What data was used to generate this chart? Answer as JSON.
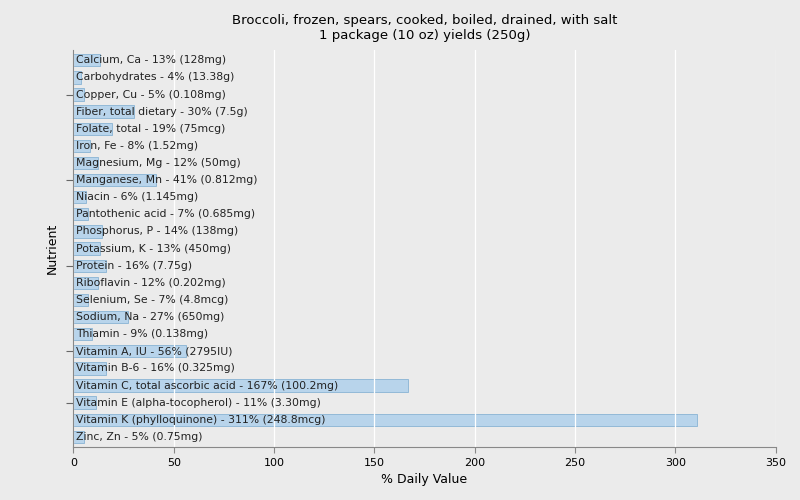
{
  "title": "Broccoli, frozen, spears, cooked, boiled, drained, with salt\n1 package (10 oz) yields (250g)",
  "xlabel": "% Daily Value",
  "ylabel": "Nutrient",
  "xlim": [
    0,
    350
  ],
  "xticks": [
    0,
    50,
    100,
    150,
    200,
    250,
    300,
    350
  ],
  "bar_color": "#b8d4eb",
  "bar_edge_color": "#7aaacf",
  "background_color": "#ebebeb",
  "plot_bg_color": "#ebebeb",
  "nutrients": [
    "Calcium, Ca - 13% (128mg)",
    "Carbohydrates - 4% (13.38g)",
    "Copper, Cu - 5% (0.108mg)",
    "Fiber, total dietary - 30% (7.5g)",
    "Folate, total - 19% (75mcg)",
    "Iron, Fe - 8% (1.52mg)",
    "Magnesium, Mg - 12% (50mg)",
    "Manganese, Mn - 41% (0.812mg)",
    "Niacin - 6% (1.145mg)",
    "Pantothenic acid - 7% (0.685mg)",
    "Phosphorus, P - 14% (138mg)",
    "Potassium, K - 13% (450mg)",
    "Protein - 16% (7.75g)",
    "Riboflavin - 12% (0.202mg)",
    "Selenium, Se - 7% (4.8mcg)",
    "Sodium, Na - 27% (650mg)",
    "Thiamin - 9% (0.138mg)",
    "Vitamin A, IU - 56% (2795IU)",
    "Vitamin B-6 - 16% (0.325mg)",
    "Vitamin C, total ascorbic acid - 167% (100.2mg)",
    "Vitamin E (alpha-tocopherol) - 11% (3.30mg)",
    "Vitamin K (phylloquinone) - 311% (248.8mcg)",
    "Zinc, Zn - 5% (0.75mg)"
  ],
  "values": [
    13,
    4,
    5,
    30,
    19,
    8,
    12,
    41,
    6,
    7,
    14,
    13,
    16,
    12,
    7,
    27,
    9,
    56,
    16,
    167,
    11,
    311,
    5
  ],
  "label_fontsize": 7.8,
  "title_fontsize": 9.5
}
